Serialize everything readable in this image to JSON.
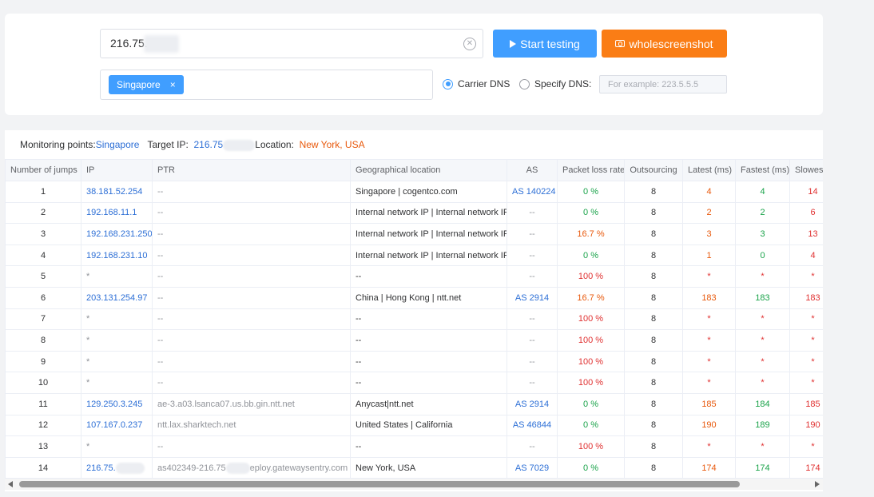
{
  "search": {
    "ip_value": "216.75.7",
    "start_label": "Start testing",
    "screenshot_label": "wholescreenshot",
    "node_tag": "Singapore",
    "tag_close": "×",
    "carrier_dns_label": "Carrier DNS",
    "specify_dns_label": "Specify DNS:",
    "dns_placeholder": "For example: 223.5.5.5"
  },
  "info": {
    "monitoring_label": "Monitoring points:",
    "monitoring_value": "Singapore",
    "target_label": "Target IP:",
    "target_value": "216.75",
    "location_label": "Location:",
    "location_value": "New York, USA"
  },
  "table": {
    "headers": [
      "Number of jumps",
      "IP",
      "PTR",
      "Geographical location",
      "AS",
      "Packet loss rate",
      "Outsourcing",
      "Latest (ms)",
      "Fastest (ms)",
      "Slowest ("
    ],
    "rows": [
      {
        "jump": "1",
        "ip": "38.181.52.254",
        "ptr": "--",
        "geo": "Singapore | cogentco.com",
        "as": "AS 140224",
        "loss": "0 %",
        "out": "8",
        "latest": "4",
        "fastest": "4",
        "slowest": "14"
      },
      {
        "jump": "2",
        "ip": "192.168.11.1",
        "ptr": "--",
        "geo": "Internal network IP | Internal network IP",
        "as": "--",
        "loss": "0 %",
        "out": "8",
        "latest": "2",
        "fastest": "2",
        "slowest": "6"
      },
      {
        "jump": "3",
        "ip": "192.168.231.250",
        "ptr": "--",
        "geo": "Internal network IP | Internal network IP",
        "as": "--",
        "loss": "16.7 %",
        "out": "8",
        "latest": "3",
        "fastest": "3",
        "slowest": "13"
      },
      {
        "jump": "4",
        "ip": "192.168.231.10",
        "ptr": "--",
        "geo": "Internal network IP | Internal network IP",
        "as": "--",
        "loss": "0 %",
        "out": "8",
        "latest": "1",
        "fastest": "0",
        "slowest": "4"
      },
      {
        "jump": "5",
        "ip": "*",
        "ptr": "--",
        "geo": "--",
        "as": "--",
        "loss": "100 %",
        "out": "8",
        "latest": "*",
        "fastest": "*",
        "slowest": "*"
      },
      {
        "jump": "6",
        "ip": "203.131.254.97",
        "ptr": "--",
        "geo": "China | Hong Kong | ntt.net",
        "as": "AS 2914",
        "loss": "16.7 %",
        "out": "8",
        "latest": "183",
        "fastest": "183",
        "slowest": "183"
      },
      {
        "jump": "7",
        "ip": "*",
        "ptr": "--",
        "geo": "--",
        "as": "--",
        "loss": "100 %",
        "out": "8",
        "latest": "*",
        "fastest": "*",
        "slowest": "*"
      },
      {
        "jump": "8",
        "ip": "*",
        "ptr": "--",
        "geo": "--",
        "as": "--",
        "loss": "100 %",
        "out": "8",
        "latest": "*",
        "fastest": "*",
        "slowest": "*"
      },
      {
        "jump": "9",
        "ip": "*",
        "ptr": "--",
        "geo": "--",
        "as": "--",
        "loss": "100 %",
        "out": "8",
        "latest": "*",
        "fastest": "*",
        "slowest": "*"
      },
      {
        "jump": "10",
        "ip": "*",
        "ptr": "--",
        "geo": "--",
        "as": "--",
        "loss": "100 %",
        "out": "8",
        "latest": "*",
        "fastest": "*",
        "slowest": "*"
      },
      {
        "jump": "11",
        "ip": "129.250.3.245",
        "ptr": "ae-3.a03.lsanca07.us.bb.gin.ntt.net",
        "geo": "Anycast|ntt.net",
        "as": "AS 2914",
        "loss": "0 %",
        "out": "8",
        "latest": "185",
        "fastest": "184",
        "slowest": "185"
      },
      {
        "jump": "12",
        "ip": "107.167.0.237",
        "ptr": "ntt.lax.sharktech.net",
        "geo": "United States | California",
        "as": "AS 46844",
        "loss": "0 %",
        "out": "8",
        "latest": "190",
        "fastest": "189",
        "slowest": "190"
      },
      {
        "jump": "13",
        "ip": "*",
        "ptr": "--",
        "geo": "--",
        "as": "--",
        "loss": "100 %",
        "out": "8",
        "latest": "*",
        "fastest": "*",
        "slowest": "*"
      },
      {
        "jump": "14",
        "ip": "216.75.",
        "ptr": "as402349-216.75",
        "ptr_suffix": "eploy.gatewaysentry.com",
        "geo": "New York, USA",
        "as": "AS 7029",
        "loss": "0 %",
        "out": "8",
        "latest": "174",
        "fastest": "174",
        "slowest": "174"
      }
    ]
  },
  "colors": {
    "primary": "#409eff",
    "accent_orange": "#fa7d15",
    "link": "#2d6fd6",
    "green": "#1aa34a",
    "orange": "#e8590c",
    "red": "#e03131"
  }
}
